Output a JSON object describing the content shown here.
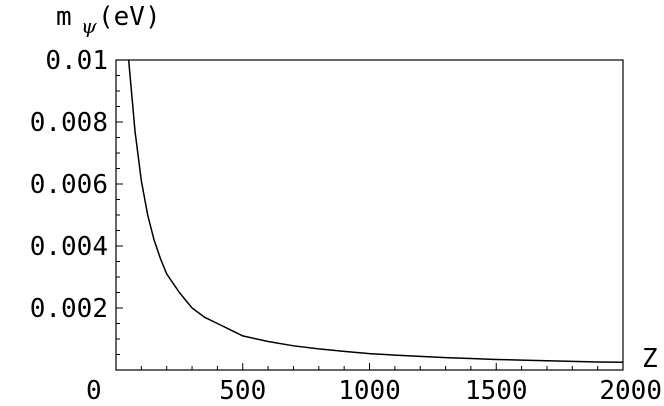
{
  "chart_data": {
    "type": "line",
    "ylabel": {
      "main": "m",
      "subscript": "ψ",
      "unit": "(eV)"
    },
    "xlabel": "Z",
    "xlim": [
      0,
      2000
    ],
    "ylim": [
      0,
      0.01
    ],
    "x_ticks": [
      0,
      500,
      1000,
      1500,
      2000
    ],
    "x_tick_labels": [
      "0",
      "500",
      "1000",
      "1500",
      "2000"
    ],
    "y_ticks": [
      0.002,
      0.004,
      0.006,
      0.008,
      0.01
    ],
    "y_tick_labels": [
      "0.002",
      "0.004",
      "0.006",
      "0.008",
      "0.01"
    ],
    "grid": false,
    "series": [
      {
        "x": [
          50,
          75,
          100,
          125,
          150,
          175,
          200,
          250,
          300,
          350,
          400,
          450,
          500,
          600,
          700,
          800,
          900,
          1000,
          1100,
          1200,
          1300,
          1400,
          1500,
          1600,
          1700,
          1800,
          1900,
          2000
        ],
        "y": [
          0.01,
          0.0077,
          0.0061,
          0.005,
          0.0042,
          0.0036,
          0.0031,
          0.0025,
          0.002,
          0.0017,
          0.0015,
          0.0013,
          0.0011,
          0.00092,
          0.00078,
          0.00068,
          0.0006,
          0.00053,
          0.00048,
          0.00044,
          0.0004,
          0.00037,
          0.00034,
          0.00032,
          0.0003,
          0.00028,
          0.00026,
          0.00025
        ]
      }
    ]
  }
}
